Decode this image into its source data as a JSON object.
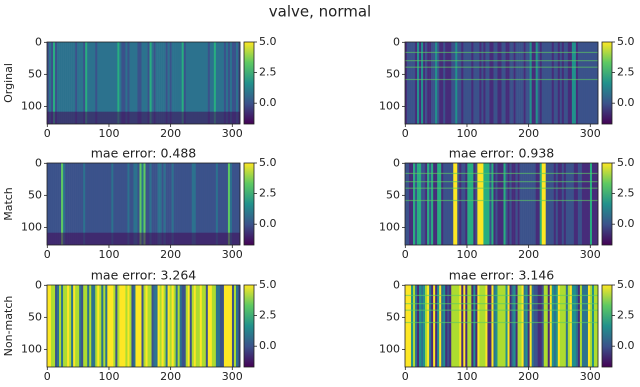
{
  "title": "valve, normal",
  "chart_data": [
    {
      "type": "heatmap",
      "ylabel": "Orginal",
      "xlim": [
        -0.5,
        312.5
      ],
      "ylim": [
        -0.5,
        127.5
      ],
      "xticks": [
        0,
        100,
        200,
        300
      ],
      "yticks": [
        0,
        50,
        100
      ],
      "clim": [
        -1.7,
        5
      ],
      "cticks": [
        {
          "value": 0,
          "label": "0.0"
        },
        {
          "value": 2.5,
          "label": "2.5"
        },
        {
          "value": 5,
          "label": "5.0"
        }
      ]
    },
    {
      "type": "heatmap",
      "xlim": [
        -0.5,
        312.5
      ],
      "ylim": [
        -0.5,
        127.5
      ],
      "xticks": [
        0,
        100,
        200,
        300
      ],
      "yticks": [
        0,
        50,
        100
      ],
      "clim": [
        -1.7,
        5
      ],
      "cticks": [
        {
          "value": 0,
          "label": "0.0"
        },
        {
          "value": 2.5,
          "label": "2.5"
        },
        {
          "value": 5,
          "label": "5.0"
        }
      ]
    },
    {
      "type": "heatmap",
      "title": "mae error: 0.488",
      "ylabel": "Match",
      "xlim": [
        -0.5,
        312.5
      ],
      "ylim": [
        -0.5,
        127.5
      ],
      "xticks": [
        0,
        100,
        200,
        300
      ],
      "yticks": [
        0,
        50,
        100
      ],
      "clim": [
        -1.7,
        5
      ],
      "cticks": [
        {
          "value": 0,
          "label": "0.0"
        },
        {
          "value": 2.5,
          "label": "2.5"
        },
        {
          "value": 5,
          "label": "5.0"
        }
      ]
    },
    {
      "type": "heatmap",
      "title": "mae error: 0.938",
      "xlim": [
        -0.5,
        312.5
      ],
      "ylim": [
        -0.5,
        127.5
      ],
      "xticks": [
        0,
        100,
        200,
        300
      ],
      "yticks": [
        0,
        50,
        100
      ],
      "clim": [
        -1.7,
        5
      ],
      "cticks": [
        {
          "value": 0,
          "label": "0.0"
        },
        {
          "value": 2.5,
          "label": "2.5"
        },
        {
          "value": 5,
          "label": "5.0"
        }
      ]
    },
    {
      "type": "heatmap",
      "title": "mae error: 3.264",
      "ylabel": "Non-match",
      "xlim": [
        -0.5,
        312.5
      ],
      "ylim": [
        -0.5,
        127.5
      ],
      "xticks": [
        0,
        100,
        200,
        300
      ],
      "yticks": [
        0,
        50,
        100
      ],
      "clim": [
        -1.7,
        5
      ],
      "cticks": [
        {
          "value": 0,
          "label": "0.0"
        },
        {
          "value": 2.5,
          "label": "2.5"
        },
        {
          "value": 5,
          "label": "5.0"
        }
      ]
    },
    {
      "type": "heatmap",
      "title": "mae error: 3.146",
      "xlim": [
        -0.5,
        312.5
      ],
      "ylim": [
        -0.5,
        127.5
      ],
      "xticks": [
        0,
        100,
        200,
        300
      ],
      "yticks": [
        0,
        50,
        100
      ],
      "clim": [
        -1.7,
        5
      ],
      "cticks": [
        {
          "value": 0,
          "label": "0.0"
        },
        {
          "value": 2.5,
          "label": "2.5"
        },
        {
          "value": 5,
          "label": "5.0"
        }
      ]
    }
  ]
}
